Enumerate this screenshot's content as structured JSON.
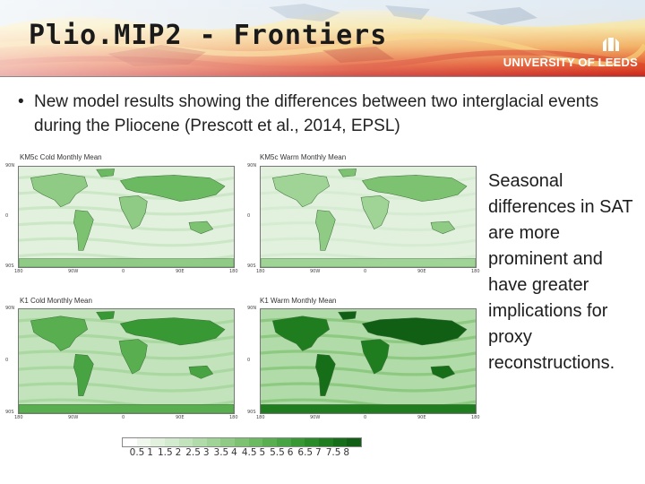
{
  "slide": {
    "title": "Plio.MIP2 - Frontiers",
    "logo_text": "UNIVERSITY OF LEEDS",
    "bullet_marker": "•",
    "bullet_text": "New model results showing the differences between two interglacial events during the Pliocene (Prescott et al., 2014, EPSL)",
    "side_text": "Seasonal differences in SAT are more prominent and have greater implications for proxy reconstructions."
  },
  "figure": {
    "panels": [
      {
        "title": "KM5c Cold Monthly Mean",
        "intensity": 0.45
      },
      {
        "title": "KM5c Warm Monthly Mean",
        "intensity": 0.35
      },
      {
        "title": "K1 Cold Monthly Mean",
        "intensity": 0.6
      },
      {
        "title": "K1 Warm Monthly Mean",
        "intensity": 0.85
      }
    ],
    "lat_ticks": [
      "90N",
      "0",
      "90S"
    ],
    "lon_ticks": [
      "180",
      "90W",
      "0",
      "90E",
      "180"
    ],
    "colorbar_labels": [
      "0.5",
      "1",
      "1.5",
      "2",
      "2.5",
      "3",
      "3.5",
      "4",
      "4.5",
      "5",
      "5.5",
      "6",
      "6.5",
      "7",
      "7.5",
      "8"
    ],
    "colorbar_colors": [
      "#ffffff",
      "#f0f8ee",
      "#e2f1de",
      "#d2eacd",
      "#c2e3bb",
      "#b1dba8",
      "#a0d396",
      "#8fcb84",
      "#7dc271",
      "#6bb960",
      "#59af50",
      "#48a442",
      "#389834",
      "#2a8b29",
      "#1f7d20",
      "#176e19",
      "#115f14"
    ]
  }
}
